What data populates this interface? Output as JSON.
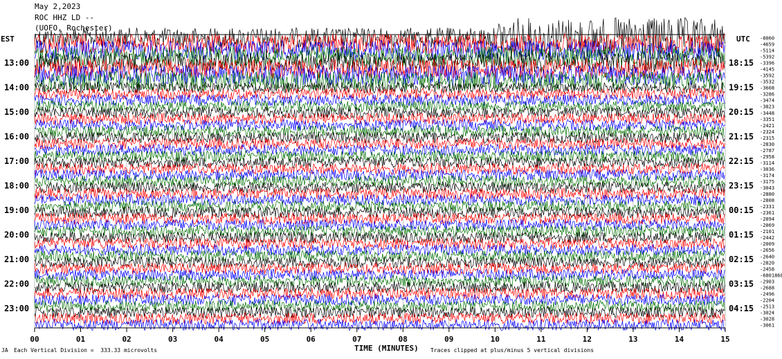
{
  "header": {
    "date": "May 2,2023",
    "station": "ROC HHZ LD --",
    "location": "(UOFO, Rochester)"
  },
  "left_zone": "EST",
  "right_zone": "UTC",
  "footer": {
    "xlabel": "TIME (MINUTES)",
    "scale": "Each Vertical Division =  333.33 microvolts",
    "clip": "Traces clipped at plus/minus 5 vertical divisions",
    "corner_mark": "JA"
  },
  "colors": {
    "trace_cycle": [
      "#000000",
      "#ff0000",
      "#0000ff",
      "#007000"
    ]
  },
  "chart_data": {
    "type": "line",
    "title": "",
    "xlabel": "TIME (MINUTES)",
    "xlim": [
      0,
      15
    ],
    "x_ticks": [
      "00",
      "01",
      "02",
      "03",
      "04",
      "05",
      "06",
      "07",
      "08",
      "09",
      "10",
      "11",
      "12",
      "13",
      "14",
      "15"
    ],
    "left_hour_labels": [
      "13:00",
      "14:00",
      "15:00",
      "16:00",
      "17:00",
      "18:00",
      "19:00",
      "20:00",
      "21:00",
      "22:00",
      "23:00"
    ],
    "right_hour_labels": [
      "18:15",
      "19:15",
      "20:15",
      "21:15",
      "22:15",
      "23:15",
      "00:15",
      "01:15",
      "02:15",
      "03:15",
      "04:15"
    ],
    "right_offsets": [
      "-8060",
      "-4659",
      "-5114",
      "-5392",
      "-3396",
      "-4145",
      "-3592",
      "-3532",
      "-3608",
      "-3286",
      "-3474",
      "-3823",
      "-3448",
      "-3351",
      "-2421",
      "-2324",
      "-2315",
      "-2830",
      "-2787",
      "-2958",
      "-3114",
      "-3036",
      "-3174",
      "-3175",
      "-3043",
      "-2880",
      "-2808",
      "-2331",
      "-2361",
      "-2094",
      "-2069",
      "-2101",
      "-2442",
      "-2009",
      "-2656",
      "-2640",
      "-2820",
      "-2458",
      "-6801868",
      "-2903",
      "-2688",
      "-2496",
      "-2204",
      "-2513",
      "-3024",
      "-3028",
      "-3061"
    ],
    "trace_count": 47,
    "grid": true
  }
}
